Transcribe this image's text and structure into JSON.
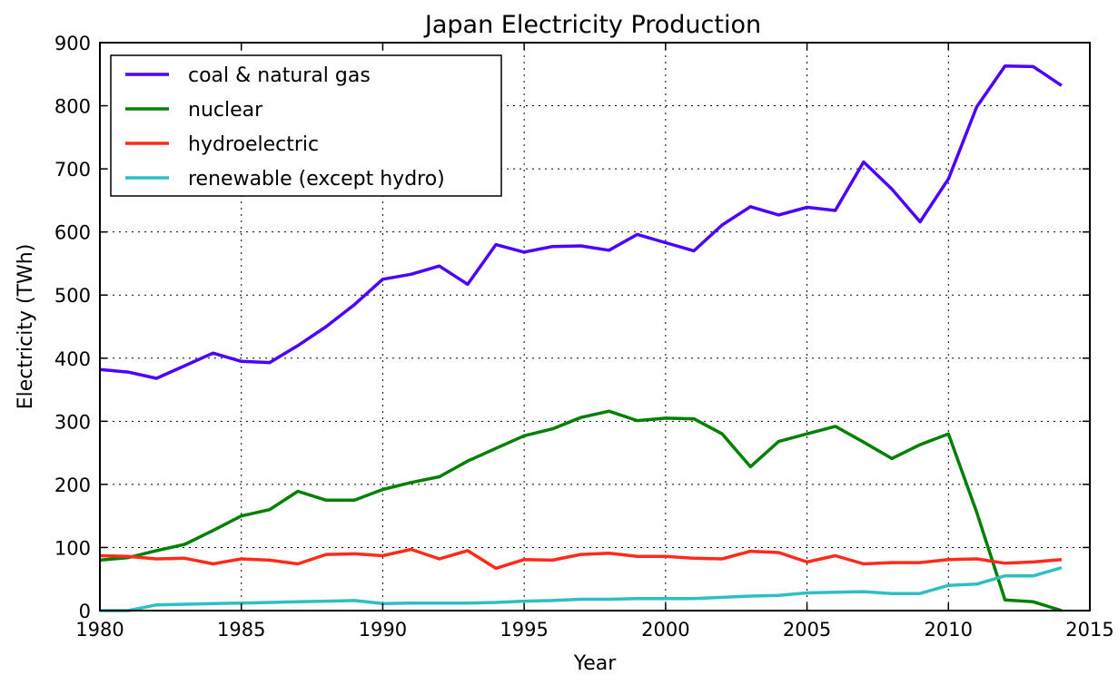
{
  "chart_data": {
    "type": "line",
    "title": "Japan Electricity Production",
    "xlabel": "Year",
    "ylabel": "Electricity (TWh)",
    "xlim": [
      1980,
      2015
    ],
    "ylim": [
      0,
      900
    ],
    "xticks": [
      "1980",
      "1985",
      "1990",
      "1995",
      "2000",
      "2005",
      "2010",
      "2015"
    ],
    "yticks": [
      "0",
      "100",
      "200",
      "300",
      "400",
      "500",
      "600",
      "700",
      "800",
      "900"
    ],
    "grid": true,
    "legend_position": "top-left",
    "x": [
      1980,
      1981,
      1982,
      1983,
      1984,
      1985,
      1986,
      1987,
      1988,
      1989,
      1990,
      1991,
      1992,
      1993,
      1994,
      1995,
      1996,
      1997,
      1998,
      1999,
      2000,
      2001,
      2002,
      2003,
      2004,
      2005,
      2006,
      2007,
      2008,
      2009,
      2010,
      2011,
      2012,
      2013,
      2014
    ],
    "series": [
      {
        "name": "coal & natural gas",
        "color": "#4c00ff",
        "values": [
          382,
          378,
          368,
          388,
          408,
          395,
          393,
          420,
          450,
          485,
          525,
          533,
          546,
          517,
          580,
          568,
          577,
          578,
          571,
          596,
          583,
          570,
          611,
          640,
          627,
          639,
          634,
          711,
          668,
          616,
          684,
          798,
          863,
          862,
          832
        ]
      },
      {
        "name": "nuclear",
        "color": "#008000",
        "values": [
          80,
          84,
          95,
          105,
          127,
          150,
          160,
          189,
          175,
          175,
          192,
          203,
          212,
          237,
          257,
          277,
          288,
          306,
          316,
          301,
          305,
          304,
          280,
          228,
          268,
          280,
          292,
          267,
          241,
          263,
          280,
          156,
          17,
          14,
          0
        ]
      },
      {
        "name": "hydroelectric",
        "color": "#ff2a1a",
        "values": [
          87,
          86,
          82,
          83,
          74,
          82,
          80,
          74,
          89,
          90,
          87,
          97,
          82,
          95,
          67,
          81,
          80,
          89,
          91,
          86,
          86,
          83,
          82,
          94,
          92,
          77,
          87,
          74,
          76,
          76,
          81,
          82,
          75,
          77,
          81
        ]
      },
      {
        "name": "renewable (except hydro)",
        "color": "#2ebfc4",
        "values": [
          0,
          0,
          9,
          10,
          11,
          12,
          13,
          14,
          15,
          16,
          11,
          12,
          12,
          12,
          13,
          15,
          16,
          18,
          18,
          19,
          19,
          19,
          21,
          23,
          24,
          28,
          29,
          30,
          27,
          27,
          40,
          42,
          55,
          55,
          68
        ]
      }
    ]
  }
}
